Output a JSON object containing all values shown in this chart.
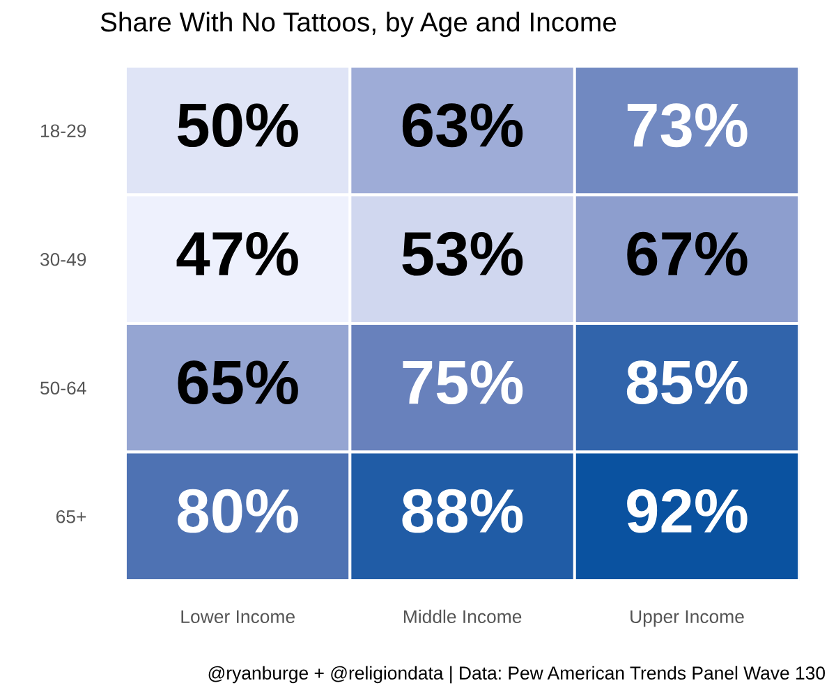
{
  "chart_data": {
    "type": "heatmap",
    "title": "Share With No Tattoos, by Age and Income",
    "categories": [
      "Lower Income",
      "Middle Income",
      "Upper Income"
    ],
    "y_categories": [
      "18-29",
      "30-49",
      "50-64",
      "65+"
    ],
    "cells": [
      [
        50,
        63,
        73
      ],
      [
        47,
        53,
        67
      ],
      [
        65,
        75,
        85
      ],
      [
        80,
        88,
        92
      ]
    ],
    "cell_labels": [
      [
        "50%",
        "63%",
        "73%"
      ],
      [
        "47%",
        "53%",
        "67%"
      ],
      [
        "65%",
        "75%",
        "85%"
      ],
      [
        "80%",
        "88%",
        "92%"
      ]
    ],
    "annotations": [
      "@ryanburge + @religiondata | Data: Pew American Trends Panel Wave 130"
    ],
    "grid": false,
    "legend": false
  }
}
